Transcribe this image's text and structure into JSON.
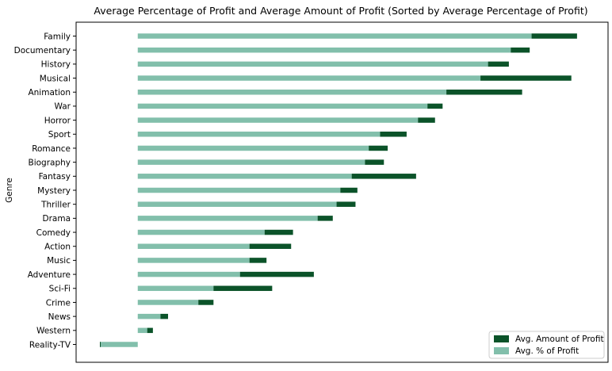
{
  "chart_data": {
    "type": "bar",
    "orientation": "horizontal",
    "stacked": true,
    "title": "Average Percentage of Profit and Average Amount of Profit (Sorted by Average Percentage of Profit)",
    "xlabel": "",
    "ylabel": "Genre",
    "xlim": [
      -0.2,
      2.4
    ],
    "categories": [
      "Family",
      "Documentary",
      "History",
      "Musical",
      "Animation",
      "War",
      "Horror",
      "Sport",
      "Romance",
      "Biography",
      "Fantasy",
      "Mystery",
      "Thriller",
      "Drama",
      "Comedy",
      "Action",
      "Music",
      "Adventure",
      "Sci-Fi",
      "Crime",
      "News",
      "Western",
      "Reality-TV"
    ],
    "series": [
      {
        "name": "Avg. % of Profit",
        "color": "#82bfab",
        "values": [
          2.08,
          1.97,
          1.85,
          1.81,
          1.63,
          1.53,
          1.48,
          1.28,
          1.22,
          1.2,
          1.13,
          1.07,
          1.05,
          0.95,
          0.67,
          0.59,
          0.59,
          0.54,
          0.4,
          0.32,
          0.12,
          0.05,
          -0.2
        ]
      },
      {
        "name": "Avg. Amount of Profit",
        "color": "#0b5329",
        "values": [
          0.24,
          0.1,
          0.11,
          0.48,
          0.4,
          0.08,
          0.09,
          0.14,
          0.1,
          0.1,
          0.34,
          0.09,
          0.1,
          0.08,
          0.15,
          0.22,
          0.09,
          0.39,
          0.31,
          0.08,
          0.04,
          0.03,
          0.003
        ]
      }
    ],
    "legend": {
      "position": "lower-right",
      "entries": [
        "Avg. Amount of Profit",
        "Avg. % of Profit"
      ]
    },
    "grid": false
  }
}
